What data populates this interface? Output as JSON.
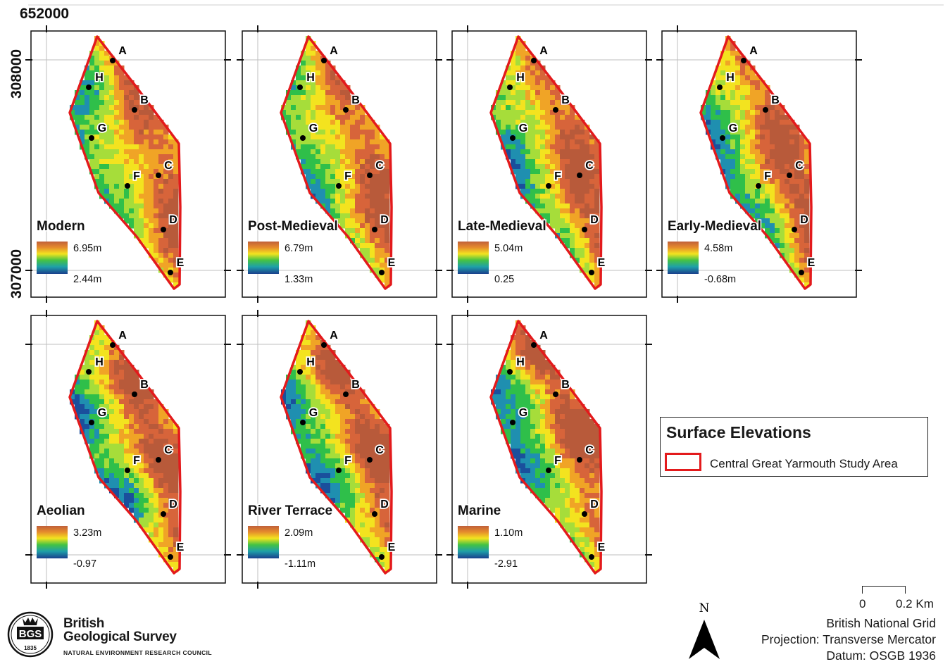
{
  "coordinates": {
    "easting_top": "652000",
    "northing_upper": "308000",
    "northing_lower": "307000"
  },
  "point_labels": [
    "A",
    "B",
    "C",
    "D",
    "E",
    "F",
    "G",
    "H"
  ],
  "panels": [
    {
      "title": "Modern",
      "max": "6.95m",
      "min": "2.44m",
      "colors": {
        "max": "#d7191c"
      }
    },
    {
      "title": "Post-Medieval",
      "max": "6.79m",
      "min": "1.33m"
    },
    {
      "title": "Late-Medieval",
      "max": "5.04m",
      "min": "0.25"
    },
    {
      "title": "Early-Medieval",
      "max": "4.58m",
      "min": "-0.68m"
    },
    {
      "title": "Aeolian",
      "max": "3.23m",
      "min": "-0.97"
    },
    {
      "title": "River Terrace",
      "max": "2.09m",
      "min": "-1.11m"
    },
    {
      "title": "Marine",
      "max": "1.10m",
      "min": "-2.91"
    }
  ],
  "legend": {
    "title": "Surface Elevations",
    "item_label": "Central Great Yarmouth Study Area",
    "boundary_color": "#e31a1c"
  },
  "scale_bar": {
    "start": "0",
    "end": "0.2 Km"
  },
  "north_label": "N",
  "projection": {
    "grid": "British National Grid",
    "projection": "Projection: Transverse Mercator",
    "datum": "Datum: OSGB 1936"
  },
  "organisation": {
    "logo_text": "BGS",
    "logo_year": "1835",
    "name_line1": "British",
    "name_line2": "Geological Survey",
    "parent": "NATURAL ENVIRONMENT RESEARCH COUNCIL"
  },
  "colors": {
    "ramp": [
      "#1a4f9c",
      "#1f8fb0",
      "#2fbf4a",
      "#a6dd3a",
      "#f3e31f",
      "#f0a426",
      "#d7643a",
      "#b85a3a"
    ],
    "boundary": "#e31a1c"
  }
}
